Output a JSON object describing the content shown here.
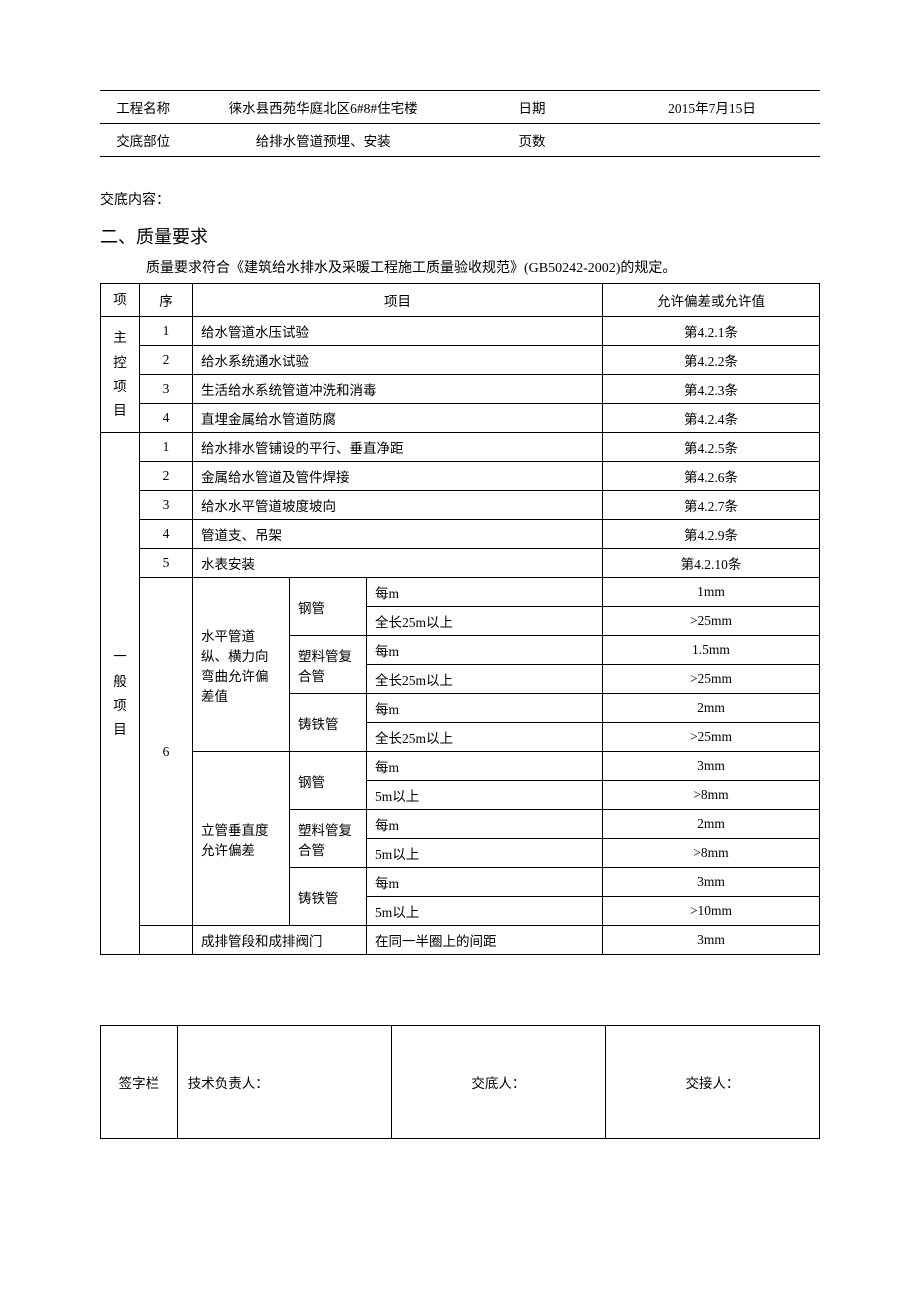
{
  "header": {
    "project_label": "工程名称",
    "project_value": "徕水县西苑华庭北区6#8#住宅楼",
    "date_label": "日期",
    "date_value": "2015年7月15日",
    "part_label": "交底部位",
    "part_value": "给排水管道预埋、安装",
    "pages_label": "页数",
    "pages_value": ""
  },
  "content_label": "交底内容：",
  "section_title": "二、质量要求",
  "spec_line": "质量要求符合《建筑给水排水及采暖工程施工质量验收规范》(GB50242-2002)的规定。",
  "table": {
    "head": {
      "c1": "项",
      "c2": "序",
      "c3": "项目",
      "c4": "允许偏差或允许值"
    },
    "group_a_label": "主控项目",
    "group_b_label": "一般项目",
    "rows_a": [
      {
        "n": "1",
        "item": "给水管道水压试验",
        "tol": "第4.2.1条"
      },
      {
        "n": "2",
        "item": "给水系统通水试验",
        "tol": "第4.2.2条"
      },
      {
        "n": "3",
        "item": "生活给水系统管道冲洗和消毒",
        "tol": "第4.2.3条"
      },
      {
        "n": "4",
        "item": "直埋金属给水管道防腐",
        "tol": "第4.2.4条"
      }
    ],
    "rows_b_simple": [
      {
        "n": "1",
        "item": "给水排水管铺设的平行、垂直净距",
        "tol": "第4.2.5条"
      },
      {
        "n": "2",
        "item": "金属给水管道及管件焊接",
        "tol": "第4.2.6条"
      },
      {
        "n": "3",
        "item": "给水水平管道坡度坡向",
        "tol": "第4.2.7条"
      },
      {
        "n": "4",
        "item": "管道支、吊架",
        "tol": "第4.2.9条"
      },
      {
        "n": "5",
        "item": "水表安装",
        "tol": "第4.2.10条"
      }
    ],
    "n6": "6",
    "horiz_label": "水平管道纵、横力向弯曲允许偏差值",
    "vert_label": "立管垂直度允许偏差",
    "pipes": {
      "steel": "钢管",
      "plastic_comp": "塑料管复合管",
      "plastic_comp2": "塑料管复合管",
      "cast": "铸铁管"
    },
    "conds": {
      "per_m": "每m",
      "over25": "全长25m以上",
      "over5": "5m以上"
    },
    "vals": {
      "h_steel_m": "1mm",
      "h_steel_25": ">25mm",
      "h_plast_m": "1.5mm",
      "h_plast_25": ">25mm",
      "h_cast_m": "2mm",
      "h_cast_25": ">25mm",
      "v_steel_m": "3mm",
      "v_steel_5": ">8mm",
      "v_plast_m": "2mm",
      "v_plast_5": ">8mm",
      "v_cast_m": "3mm",
      "v_cast_5": ">10mm"
    },
    "last_row": {
      "item": "成排管段和成排阀门",
      "cond": "在同一半圈上的间距",
      "tol": "3mm"
    }
  },
  "sign": {
    "label": "签字栏",
    "tech": "技术负责人：",
    "jd": "交底人：",
    "jj": "交接人："
  }
}
